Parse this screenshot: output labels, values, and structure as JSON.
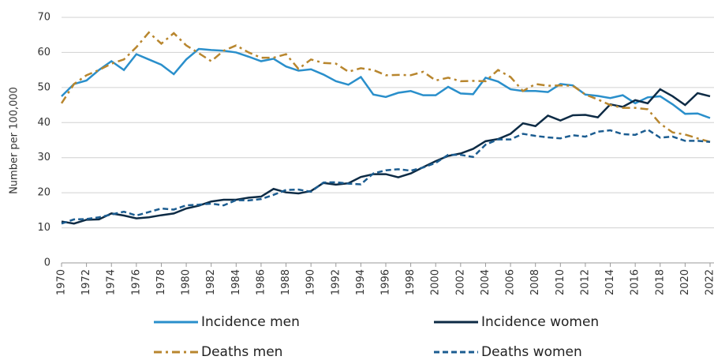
{
  "chart_data": {
    "type": "line",
    "y_label": "Number per 100,000",
    "x": [
      1970,
      1971,
      1972,
      1973,
      1974,
      1975,
      1976,
      1977,
      1978,
      1979,
      1980,
      1981,
      1982,
      1983,
      1984,
      1985,
      1986,
      1987,
      1988,
      1989,
      1990,
      1991,
      1992,
      1993,
      1994,
      1995,
      1996,
      1997,
      1998,
      1999,
      2000,
      2001,
      2002,
      2003,
      2004,
      2005,
      2006,
      2007,
      2008,
      2009,
      2010,
      2011,
      2012,
      2013,
      2014,
      2015,
      2016,
      2017,
      2018,
      2019,
      2020,
      2021,
      2022
    ],
    "xlim": [
      1970,
      2022
    ],
    "xticks": [
      1970,
      1972,
      1974,
      1976,
      1978,
      1980,
      1982,
      1984,
      1986,
      1988,
      1990,
      1992,
      1994,
      1996,
      1998,
      2000,
      2002,
      2004,
      2006,
      2008,
      2010,
      2012,
      2014,
      2016,
      2018,
      2020,
      2022
    ],
    "ylim": [
      0,
      70
    ],
    "yticks": [
      0,
      10,
      20,
      30,
      40,
      50,
      60,
      70
    ],
    "grid": true,
    "legend": "bottom",
    "series": [
      {
        "name": "Incidence men",
        "color": "#2a8fcb",
        "dash": "solid",
        "values": [
          47.5,
          51,
          52,
          55,
          57.5,
          55,
          59.5,
          58,
          56.5,
          53.8,
          58,
          61,
          60.7,
          60.5,
          60,
          58.8,
          57.5,
          58.2,
          56,
          54.8,
          55.2,
          53.7,
          51.8,
          50.8,
          53,
          48,
          47.3,
          48.5,
          49,
          47.8,
          47.8,
          50.2,
          48.3,
          48.1,
          52.8,
          51.7,
          49.5,
          49,
          49,
          48.7,
          51,
          50.6,
          48,
          47.6,
          47,
          47.8,
          45.5,
          47.2,
          47.5,
          45.2,
          42.5,
          42.6,
          41.3
        ]
      },
      {
        "name": "Incidence women",
        "color": "#0d2b45",
        "dash": "solid",
        "values": [
          11.8,
          11.2,
          12.3,
          12.4,
          14.1,
          13.5,
          12.7,
          13,
          13.6,
          14.1,
          15.5,
          16.3,
          17.5,
          18,
          18,
          18.6,
          18.9,
          21.1,
          20.1,
          19.8,
          20.5,
          22.8,
          22.3,
          22.7,
          24.5,
          25.3,
          25.3,
          24.4,
          25.5,
          27.3,
          29,
          30.5,
          31.2,
          32.5,
          34.7,
          35.3,
          36.8,
          39.8,
          39,
          42,
          40.6,
          42.1,
          42.2,
          41.5,
          45.2,
          44.5,
          46.4,
          45.5,
          49.5,
          47.5,
          45,
          48.4,
          47.5
        ]
      },
      {
        "name": "Deaths men",
        "color": "#b8862e",
        "dash": "dashdot",
        "values": [
          45.5,
          51,
          53.5,
          55,
          56.8,
          58,
          61.5,
          65.7,
          62.5,
          65.5,
          62,
          59.8,
          57.5,
          60.5,
          62,
          60,
          58.5,
          58.5,
          59.5,
          55.3,
          58,
          57,
          56.8,
          54.5,
          55.5,
          55,
          53.5,
          53.6,
          53.5,
          54.5,
          52,
          52.8,
          51.8,
          51.9,
          51.8,
          55,
          53,
          49,
          51,
          50.5,
          50.6,
          50.5,
          48,
          46.6,
          45,
          44.2,
          44.2,
          43.8,
          39.7,
          37.2,
          36.6,
          35.5,
          34.5
        ]
      },
      {
        "name": "Deaths women",
        "color": "#1c5d91",
        "dash": "dashed",
        "values": [
          11.2,
          12.4,
          12.5,
          13,
          13.8,
          14.6,
          13.5,
          14.5,
          15.5,
          15.2,
          16.4,
          16.6,
          16.9,
          16.4,
          17.9,
          17.8,
          18.2,
          19.4,
          20.8,
          20.9,
          20.3,
          22.9,
          23,
          22.6,
          22.4,
          25.5,
          26.4,
          26.7,
          26.3,
          27.2,
          28.5,
          30.8,
          30.8,
          30.2,
          33.7,
          35.2,
          35.2,
          36.8,
          36.2,
          35.8,
          35.5,
          36.4,
          36,
          37.4,
          37.8,
          36.7,
          36.5,
          38,
          35.7,
          36,
          34.8,
          34.8,
          34.5
        ]
      }
    ]
  }
}
